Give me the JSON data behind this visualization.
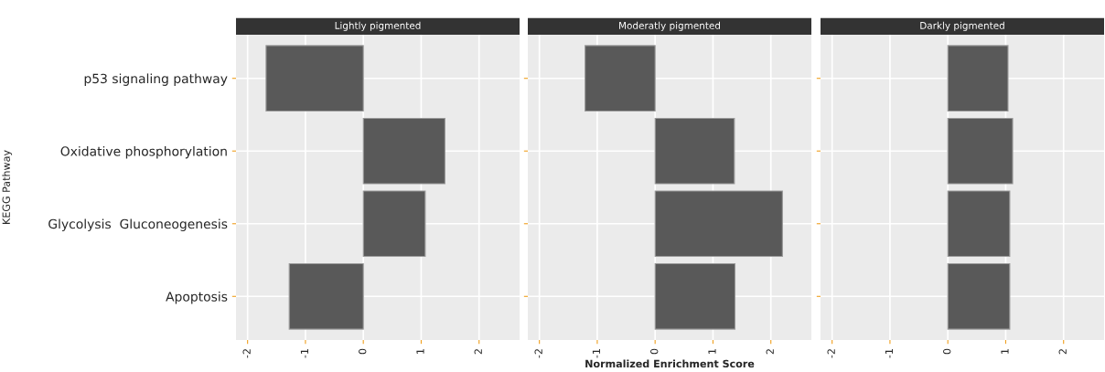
{
  "chart_data": [
    {
      "type": "bar",
      "orientation": "horizontal",
      "title": "Lightly pigmented",
      "ylabel": "KEGG Pathway",
      "categories": [
        "p53 signaling pathway",
        "Oxidative phosphorylation",
        "Glycolysis  Gluconeogenesis",
        "Apoptosis"
      ],
      "values": [
        -1.68,
        1.41,
        1.07,
        -1.28
      ],
      "color": "#595959",
      "xlim": [
        -2.2,
        2.7
      ],
      "xticks": [
        -2,
        -1,
        0,
        1,
        2
      ],
      "grid": true
    },
    {
      "type": "bar",
      "orientation": "horizontal",
      "title": "Moderatly pigmented",
      "xlabel": "Normalized Enrichment Score",
      "values": [
        -1.21,
        1.37,
        2.2,
        1.38
      ],
      "color": "#595959",
      "xlim": [
        -2.2,
        2.7
      ],
      "xticks": [
        -2,
        -1,
        0,
        1,
        2
      ],
      "grid": true,
      "tick_labels": "x"
    },
    {
      "type": "bar",
      "orientation": "horizontal",
      "title": "Darkly pigmented",
      "values": [
        1.04,
        1.12,
        1.07,
        1.07
      ],
      "color": "#595959",
      "xlim": [
        -2.2,
        2.7
      ],
      "xticks": [
        -2,
        -1,
        0,
        1,
        2
      ],
      "grid": true,
      "tick_labels": "x"
    }
  ]
}
